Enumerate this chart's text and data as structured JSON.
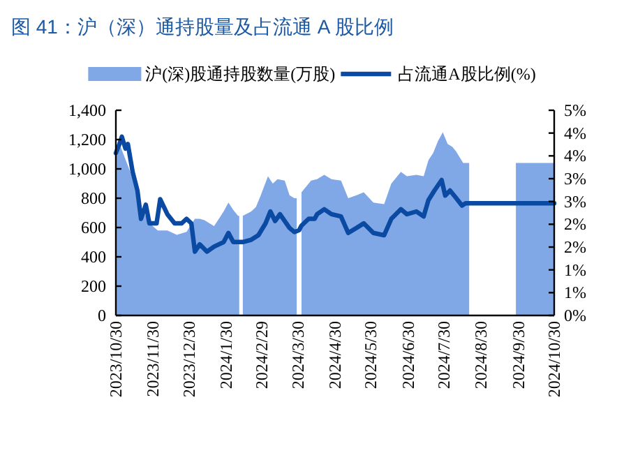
{
  "chart_data": {
    "type": "area",
    "title": "图 41：沪（深）通持股量及占流通 A 股比例",
    "legend": "top",
    "grid": false,
    "xlim": [
      "2023-10-30",
      "2024-10-30"
    ],
    "xticks": [
      {
        "value": "2023-10-30",
        "label": "2023/10/30"
      },
      {
        "value": "2023-11-30",
        "label": "2023/11/30"
      },
      {
        "value": "2023-12-30",
        "label": "2023/12/30"
      },
      {
        "value": "2024-01-30",
        "label": "2024/1/30"
      },
      {
        "value": "2024-02-29",
        "label": "2024/2/29"
      },
      {
        "value": "2024-03-30",
        "label": "2024/3/30"
      },
      {
        "value": "2024-04-30",
        "label": "2024/4/30"
      },
      {
        "value": "2024-05-30",
        "label": "2024/5/30"
      },
      {
        "value": "2024-06-30",
        "label": "2024/6/30"
      },
      {
        "value": "2024-07-30",
        "label": "2024/7/30"
      },
      {
        "value": "2024-08-30",
        "label": "2024/8/30"
      },
      {
        "value": "2024-09-30",
        "label": "2024/9/30"
      },
      {
        "value": "2024-10-30",
        "label": "2024/10/30"
      }
    ],
    "ylim": [
      0,
      1400
    ],
    "yticks": [
      0,
      200,
      400,
      600,
      800,
      {
        "value": 1000,
        "label": "1,000"
      },
      {
        "value": 1200,
        "label": "1,200"
      },
      {
        "value": 1400,
        "label": "1,400"
      }
    ],
    "y2lim": [
      0,
      4.5
    ],
    "y2ticks": [
      {
        "value": 0,
        "label": "0%"
      },
      {
        "value": 0.5,
        "label": "1%"
      },
      {
        "value": 1,
        "label": "1%"
      },
      {
        "value": 1.5,
        "label": "2%"
      },
      {
        "value": 2,
        "label": "2%"
      },
      {
        "value": 2.5,
        "label": "3%"
      },
      {
        "value": 3,
        "label": "3%"
      },
      {
        "value": 3.5,
        "label": "4%"
      },
      {
        "value": 4,
        "label": "4%"
      },
      {
        "value": 4.5,
        "label": "5%"
      }
    ],
    "series": [
      {
        "name": "沪(深)股通持股数量(万股)",
        "color": "#80a8e6",
        "x": [
          "2023-10-30",
          "2023-11-03",
          "2023-11-11",
          "2023-11-19",
          "2023-11-27",
          "2023-12-04",
          "2023-12-12",
          "2023-12-20",
          "2023-12-28",
          "2024-01-04",
          "2024-01-08",
          "2024-01-12",
          "2024-01-20",
          "2024-01-28",
          "2024-02-01",
          "2024-02-05",
          "2024-02-09",
          "2024-02-10",
          "2024-02-13",
          "2024-02-20",
          "2024-02-24",
          "2024-02-28",
          "2024-03-05",
          "2024-03-09",
          "2024-03-13",
          "2024-03-19",
          "2024-03-23",
          "2024-03-27",
          "2024-03-29",
          "2024-04-02",
          "2024-04-10",
          "2024-04-15",
          "2024-04-21",
          "2024-04-27",
          "2024-05-05",
          "2024-05-11",
          "2024-05-18",
          "2024-05-24",
          "2024-06-01",
          "2024-06-10",
          "2024-06-16",
          "2024-06-24",
          "2024-06-29",
          "2024-07-07",
          "2024-07-13",
          "2024-07-17",
          "2024-07-21",
          "2024-07-25",
          "2024-07-29",
          "2024-08-02",
          "2024-08-06",
          "2024-08-09",
          "2024-08-15",
          "2024-08-19",
          "2024-08-20",
          "2024-09-28",
          "2024-10-30"
        ],
        "values": [
          1080,
          1150,
          980,
          760,
          630,
          580,
          580,
          550,
          570,
          660,
          660,
          650,
          610,
          710,
          770,
          720,
          680,
          null,
          680,
          710,
          740,
          820,
          950,
          900,
          930,
          920,
          820,
          800,
          null,
          840,
          920,
          930,
          960,
          930,
          920,
          800,
          820,
          840,
          770,
          760,
          900,
          980,
          950,
          960,
          950,
          1060,
          1110,
          1190,
          1250,
          1170,
          1150,
          1120,
          1040,
          1040,
          null,
          1040,
          1040
        ]
      },
      {
        "name": "占流通A股比例(%)",
        "type": "line",
        "axis": "y2",
        "color": "#0b4aa2",
        "x": [
          "2023-10-30",
          "2023-11-02",
          "2023-11-04",
          "2023-11-07",
          "2023-11-09",
          "2023-11-13",
          "2023-11-17",
          "2023-11-20",
          "2023-11-24",
          "2023-11-27",
          "2023-12-03",
          "2023-12-06",
          "2023-12-12",
          "2023-12-18",
          "2023-12-24",
          "2023-12-28",
          "2024-01-01",
          "2024-01-04",
          "2024-01-08",
          "2024-01-14",
          "2024-01-20",
          "2024-01-28",
          "2024-02-01",
          "2024-02-05",
          "2024-02-13",
          "2024-02-20",
          "2024-02-26",
          "2024-03-03",
          "2024-03-07",
          "2024-03-11",
          "2024-03-15",
          "2024-03-23",
          "2024-03-27",
          "2024-03-31",
          "2024-04-02",
          "2024-04-08",
          "2024-04-13",
          "2024-04-15",
          "2024-04-21",
          "2024-04-27",
          "2024-05-05",
          "2024-05-11",
          "2024-05-18",
          "2024-05-24",
          "2024-06-01",
          "2024-06-10",
          "2024-06-16",
          "2024-06-24",
          "2024-06-29",
          "2024-07-07",
          "2024-07-13",
          "2024-07-17",
          "2024-07-22",
          "2024-07-28",
          "2024-07-31",
          "2024-08-04",
          "2024-08-09",
          "2024-08-14",
          "2024-08-17",
          "2024-10-30"
        ],
        "values": [
          3.56,
          3.76,
          3.92,
          3.66,
          3.76,
          3.15,
          2.74,
          2.12,
          2.43,
          2.02,
          2.02,
          2.55,
          2.22,
          2.02,
          2.02,
          2.12,
          2.02,
          1.4,
          1.56,
          1.4,
          1.51,
          1.61,
          1.81,
          1.61,
          1.61,
          1.66,
          1.76,
          2.02,
          2.28,
          2.07,
          2.22,
          1.92,
          1.83,
          1.87,
          1.97,
          2.12,
          2.12,
          2.22,
          2.33,
          2.22,
          2.17,
          1.81,
          1.92,
          2.02,
          1.81,
          1.76,
          2.12,
          2.33,
          2.22,
          2.28,
          2.17,
          2.53,
          2.74,
          2.97,
          2.63,
          2.74,
          2.58,
          2.41,
          2.46,
          2.46
        ]
      }
    ]
  }
}
